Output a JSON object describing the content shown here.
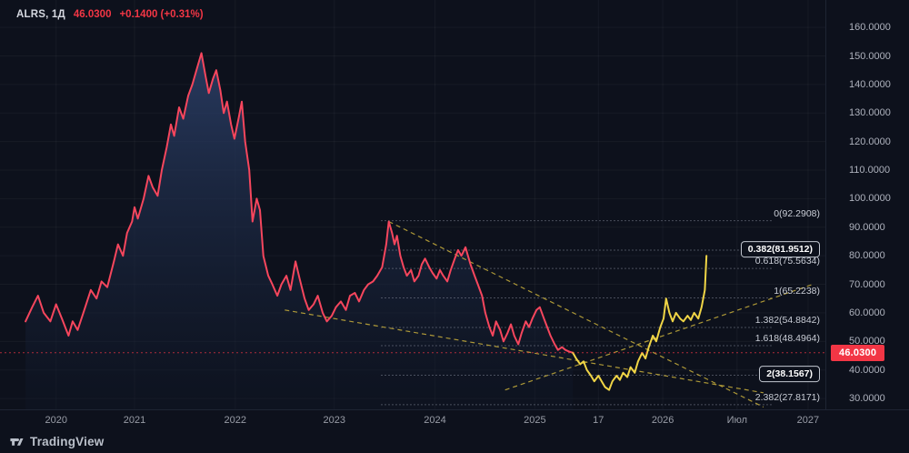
{
  "header": {
    "symbol_interval": "ALRS, 1Д",
    "price": "46.0300",
    "change": "+0.1400 (+0.31%)"
  },
  "footer": {
    "brand": "TradingView"
  },
  "chart_data": {
    "type": "line",
    "symbol": "ALRS",
    "interval": "1Д",
    "ylim": [
      26.2,
      169.6
    ],
    "y_ticks": [
      160,
      150,
      140,
      130,
      120,
      110,
      100,
      90,
      80,
      70,
      60,
      50,
      40,
      30
    ],
    "x_labels": [
      {
        "label": "2020",
        "x": 0.068
      },
      {
        "label": "2021",
        "x": 0.163
      },
      {
        "label": "2022",
        "x": 0.285
      },
      {
        "label": "2023",
        "x": 0.405
      },
      {
        "label": "2024",
        "x": 0.527
      },
      {
        "label": "2025",
        "x": 0.648
      },
      {
        "label": "17",
        "x": 0.725
      },
      {
        "label": "2026",
        "x": 0.803
      },
      {
        "label": "Июл",
        "x": 0.893
      },
      {
        "label": "2027",
        "x": 0.979
      }
    ],
    "series": [
      {
        "name": "price-history",
        "color": "#f6465d",
        "area": true,
        "points": [
          [
            0.031,
            57
          ],
          [
            0.039,
            62
          ],
          [
            0.046,
            66
          ],
          [
            0.053,
            60
          ],
          [
            0.061,
            57
          ],
          [
            0.068,
            63
          ],
          [
            0.075,
            58
          ],
          [
            0.083,
            52
          ],
          [
            0.088,
            57
          ],
          [
            0.094,
            54
          ],
          [
            0.101,
            60
          ],
          [
            0.11,
            68
          ],
          [
            0.117,
            65
          ],
          [
            0.123,
            71
          ],
          [
            0.13,
            69
          ],
          [
            0.138,
            78
          ],
          [
            0.143,
            84
          ],
          [
            0.149,
            80
          ],
          [
            0.154,
            88
          ],
          [
            0.16,
            92
          ],
          [
            0.163,
            97
          ],
          [
            0.167,
            93
          ],
          [
            0.174,
            100
          ],
          [
            0.18,
            108
          ],
          [
            0.185,
            104
          ],
          [
            0.191,
            101
          ],
          [
            0.196,
            110
          ],
          [
            0.202,
            118
          ],
          [
            0.207,
            126
          ],
          [
            0.211,
            122
          ],
          [
            0.217,
            132
          ],
          [
            0.222,
            128
          ],
          [
            0.228,
            136
          ],
          [
            0.233,
            140
          ],
          [
            0.239,
            146
          ],
          [
            0.244,
            151
          ],
          [
            0.249,
            143
          ],
          [
            0.253,
            137
          ],
          [
            0.258,
            142
          ],
          [
            0.262,
            145
          ],
          [
            0.267,
            138
          ],
          [
            0.271,
            130
          ],
          [
            0.275,
            134
          ],
          [
            0.28,
            126
          ],
          [
            0.284,
            121
          ],
          [
            0.289,
            128
          ],
          [
            0.293,
            134
          ],
          [
            0.297,
            120
          ],
          [
            0.302,
            110
          ],
          [
            0.306,
            92
          ],
          [
            0.311,
            100
          ],
          [
            0.315,
            96
          ],
          [
            0.319,
            80
          ],
          [
            0.325,
            73
          ],
          [
            0.33,
            70
          ],
          [
            0.336,
            66
          ],
          [
            0.341,
            70
          ],
          [
            0.347,
            73
          ],
          [
            0.352,
            68
          ],
          [
            0.358,
            78
          ],
          [
            0.363,
            72
          ],
          [
            0.369,
            65
          ],
          [
            0.374,
            61
          ],
          [
            0.38,
            63
          ],
          [
            0.385,
            66
          ],
          [
            0.391,
            60
          ],
          [
            0.396,
            57
          ],
          [
            0.402,
            59
          ],
          [
            0.407,
            62
          ],
          [
            0.413,
            64
          ],
          [
            0.419,
            61
          ],
          [
            0.424,
            66
          ],
          [
            0.43,
            67
          ],
          [
            0.435,
            64
          ],
          [
            0.441,
            68
          ],
          [
            0.446,
            70
          ],
          [
            0.452,
            71
          ],
          [
            0.457,
            73
          ],
          [
            0.463,
            76
          ],
          [
            0.468,
            84
          ],
          [
            0.471,
            92
          ],
          [
            0.475,
            88
          ],
          [
            0.478,
            84
          ],
          [
            0.481,
            87
          ],
          [
            0.485,
            80
          ],
          [
            0.489,
            76
          ],
          [
            0.493,
            73
          ],
          [
            0.498,
            75
          ],
          [
            0.502,
            71
          ],
          [
            0.507,
            73
          ],
          [
            0.511,
            77
          ],
          [
            0.515,
            79
          ],
          [
            0.52,
            76
          ],
          [
            0.524,
            74
          ],
          [
            0.529,
            72
          ],
          [
            0.533,
            75
          ],
          [
            0.537,
            73
          ],
          [
            0.542,
            71
          ],
          [
            0.546,
            75
          ],
          [
            0.551,
            79
          ],
          [
            0.555,
            82
          ],
          [
            0.559,
            80
          ],
          [
            0.564,
            83
          ],
          [
            0.567,
            80
          ],
          [
            0.57,
            77
          ],
          [
            0.575,
            73
          ],
          [
            0.579,
            70
          ],
          [
            0.584,
            66
          ],
          [
            0.588,
            60
          ],
          [
            0.593,
            55
          ],
          [
            0.597,
            52
          ],
          [
            0.601,
            57
          ],
          [
            0.606,
            54
          ],
          [
            0.61,
            50
          ],
          [
            0.615,
            53
          ],
          [
            0.619,
            56
          ],
          [
            0.623,
            52
          ],
          [
            0.628,
            49
          ],
          [
            0.632,
            53
          ],
          [
            0.637,
            57
          ],
          [
            0.641,
            55
          ],
          [
            0.645,
            58
          ],
          [
            0.65,
            61
          ],
          [
            0.654,
            62
          ],
          [
            0.659,
            58
          ],
          [
            0.663,
            55
          ],
          [
            0.667,
            52
          ],
          [
            0.672,
            49
          ],
          [
            0.676,
            47
          ],
          [
            0.681,
            48
          ],
          [
            0.685,
            47
          ],
          [
            0.689,
            46.5
          ],
          [
            0.694,
            46.03
          ]
        ]
      },
      {
        "name": "projection",
        "color": "#f0d546",
        "area": false,
        "points": [
          [
            0.694,
            46.03
          ],
          [
            0.698,
            44
          ],
          [
            0.703,
            42
          ],
          [
            0.707,
            43
          ],
          [
            0.711,
            40
          ],
          [
            0.716,
            38
          ],
          [
            0.72,
            36
          ],
          [
            0.725,
            38
          ],
          [
            0.729,
            36
          ],
          [
            0.733,
            34
          ],
          [
            0.738,
            33
          ],
          [
            0.742,
            36
          ],
          [
            0.747,
            38
          ],
          [
            0.751,
            36.5
          ],
          [
            0.755,
            39
          ],
          [
            0.76,
            37.5
          ],
          [
            0.764,
            41
          ],
          [
            0.769,
            39
          ],
          [
            0.773,
            43
          ],
          [
            0.778,
            46
          ],
          [
            0.782,
            44
          ],
          [
            0.786,
            48
          ],
          [
            0.791,
            52
          ],
          [
            0.795,
            50
          ],
          [
            0.8,
            55
          ],
          [
            0.804,
            58
          ],
          [
            0.807,
            65
          ],
          [
            0.811,
            60
          ],
          [
            0.815,
            57
          ],
          [
            0.819,
            60
          ],
          [
            0.824,
            58
          ],
          [
            0.828,
            57
          ],
          [
            0.833,
            59
          ],
          [
            0.837,
            57.5
          ],
          [
            0.841,
            60
          ],
          [
            0.846,
            58
          ],
          [
            0.85,
            62
          ],
          [
            0.854,
            68
          ],
          [
            0.856,
            80
          ]
        ]
      }
    ],
    "fib_levels": [
      {
        "label": "0(92.2908)",
        "value": 92.2908,
        "emphasis": false
      },
      {
        "label": "0.382(81.9512)",
        "value": 81.9512,
        "emphasis": true
      },
      {
        "label": "0.618(75.5634)",
        "value": 75.5634,
        "emphasis": false
      },
      {
        "label": "1(65.2238)",
        "value": 65.2238,
        "emphasis": false
      },
      {
        "label": "1.382(54.8842)",
        "value": 54.8842,
        "emphasis": false
      },
      {
        "label": "1.618(48.4964)",
        "value": 48.4964,
        "emphasis": false
      },
      {
        "label": "2(38.1567)",
        "value": 38.1567,
        "emphasis": true
      },
      {
        "label": "2.382(27.8171)",
        "value": 27.8171,
        "emphasis": false
      }
    ],
    "fib_extent": [
      0.462,
      0.935
    ],
    "trendlines": [
      {
        "x1": 0.471,
        "p1": 92,
        "x2": 0.925,
        "p2": 27
      },
      {
        "x1": 0.345,
        "p1": 61,
        "x2": 0.925,
        "p2": 32
      },
      {
        "x1": 0.612,
        "p1": 33,
        "x2": 0.985,
        "p2": 70
      }
    ],
    "current_price": {
      "value": 46.03,
      "label": "46.0300",
      "color": "#f23645"
    },
    "colors": {
      "history": "#f6465d",
      "forecast": "#f0d546",
      "trend": "#bfa73a",
      "fib": "#9aa0b0",
      "grid": "rgba(255,255,255,0.045)",
      "axis_text": "#aeb2bd",
      "badge": "#f23645"
    }
  }
}
